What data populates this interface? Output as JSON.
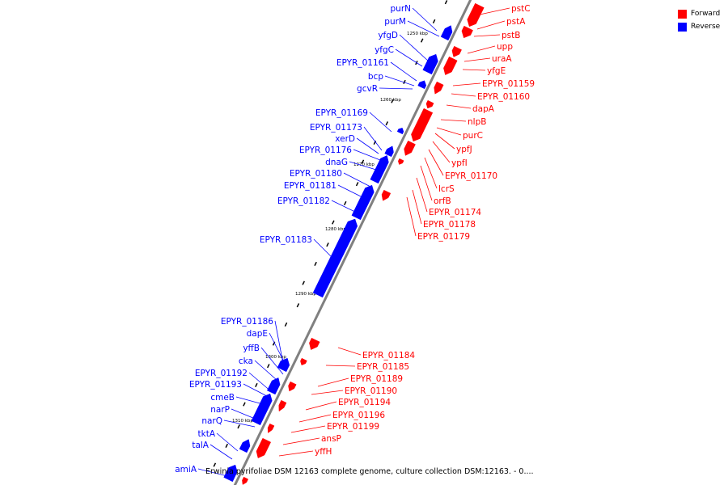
{
  "legend": {
    "forward_label": "Forward",
    "reverse_label": "Reverse",
    "forward_color": "#ff0000",
    "reverse_color": "#0000ff"
  },
  "caption": "Erwinia pyrifoliae DSM 12163 complete genome, culture collection DSM:12163. - 0....",
  "colors": {
    "forward": "#ff0000",
    "reverse": "#0000ff",
    "axis": "#808080"
  },
  "kbp_labels": [
    "1250 kbp",
    "1260 kbp",
    "1270 kbp",
    "1280 kbp",
    "1290 kbp",
    "1300 kbp",
    "1310 kbp"
  ],
  "reverse_genes": [
    "purN",
    "purM",
    "yfgD",
    "yfgC",
    "EPYR_01161",
    "bcp",
    "gcvR",
    "EPYR_01169",
    "EPYR_01173",
    "xerD",
    "EPYR_01176",
    "dnaG",
    "EPYR_01180",
    "EPYR_01181",
    "EPYR_01182",
    "EPYR_01183",
    "EPYR_01186",
    "dapE",
    "yffB",
    "cka",
    "EPYR_01192",
    "EPYR_01193",
    "cmeB",
    "narP",
    "narQ",
    "tktA",
    "talA",
    "amiA"
  ],
  "forward_genes": [
    "pstC",
    "pstA",
    "pstB",
    "upp",
    "uraA",
    "yfgE",
    "EPYR_01159",
    "EPYR_01160",
    "dapA",
    "nlpB",
    "purC",
    "ypfJ",
    "ypfI",
    "EPYR_01170",
    "lcrS",
    "orfB",
    "EPYR_01174",
    "EPYR_01178",
    "EPYR_01179",
    "EPYR_01184",
    "EPYR_01185",
    "EPYR_01189",
    "EPYR_01190",
    "EPYR_01194",
    "EPYR_01196",
    "EPYR_01199",
    "ansP",
    "yffH"
  ]
}
